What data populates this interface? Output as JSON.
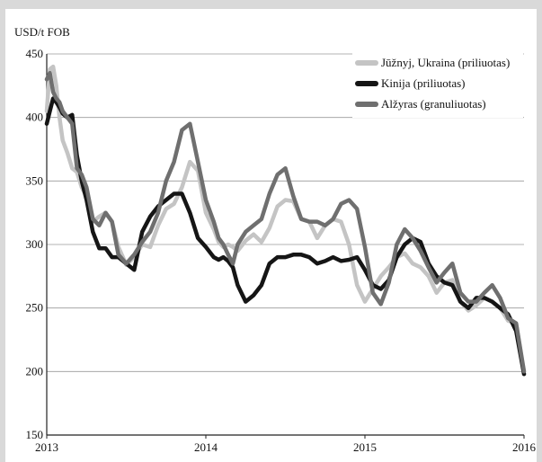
{
  "chart_data": {
    "type": "line",
    "y_unit_label": "USD/t FOB",
    "ylim": [
      150,
      450
    ],
    "yticks": [
      "150",
      "200",
      "250",
      "300",
      "350",
      "400",
      "450"
    ],
    "xlim": [
      2013.0,
      2016.0
    ],
    "xticks": [
      "2013",
      "2014",
      "2015",
      "2016"
    ],
    "grid": "horizontal",
    "legend_position": "top-right",
    "series": [
      {
        "name": "Jūžnyj, Ukraina  (priliuotas)",
        "color": "#c4c4c4",
        "x": [
          2013.0,
          2013.02,
          2013.04,
          2013.06,
          2013.08,
          2013.1,
          2013.13,
          2013.16,
          2013.19,
          2013.22,
          2013.25,
          2013.29,
          2013.33,
          2013.37,
          2013.41,
          2013.45,
          2013.5,
          2013.55,
          2013.6,
          2013.65,
          2013.7,
          2013.75,
          2013.8,
          2013.85,
          2013.9,
          2013.95,
          2014.0,
          2014.05,
          2014.08,
          2014.11,
          2014.14,
          2014.17,
          2014.2,
          2014.25,
          2014.3,
          2014.35,
          2014.4,
          2014.45,
          2014.5,
          2014.55,
          2014.6,
          2014.65,
          2014.7,
          2014.75,
          2014.8,
          2014.85,
          2014.9,
          2014.95,
          2015.0,
          2015.05,
          2015.1,
          2015.15,
          2015.2,
          2015.25,
          2015.3,
          2015.35,
          2015.4,
          2015.45,
          2015.5,
          2015.55,
          2015.6,
          2015.65,
          2015.7,
          2015.75,
          2015.8,
          2015.85,
          2015.9,
          2015.95,
          2016.0
        ],
        "values": [
          405,
          438,
          440,
          425,
          400,
          382,
          372,
          360,
          357,
          345,
          338,
          318,
          322,
          325,
          318,
          298,
          284,
          290,
          300,
          298,
          315,
          328,
          332,
          345,
          365,
          358,
          325,
          312,
          302,
          298,
          300,
          298,
          295,
          303,
          308,
          302,
          313,
          330,
          335,
          334,
          320,
          318,
          305,
          315,
          320,
          318,
          300,
          268,
          255,
          265,
          275,
          282,
          290,
          293,
          285,
          282,
          275,
          262,
          270,
          272,
          255,
          248,
          252,
          258,
          255,
          250,
          240,
          238,
          198
        ]
      },
      {
        "name": "Kinija (priliuotas)",
        "color": "#151515",
        "x": [
          2013.0,
          2013.02,
          2013.04,
          2013.06,
          2013.08,
          2013.1,
          2013.13,
          2013.16,
          2013.19,
          2013.22,
          2013.25,
          2013.29,
          2013.33,
          2013.37,
          2013.41,
          2013.45,
          2013.5,
          2013.55,
          2013.6,
          2013.65,
          2013.7,
          2013.75,
          2013.8,
          2013.85,
          2013.9,
          2013.95,
          2014.0,
          2014.05,
          2014.08,
          2014.11,
          2014.14,
          2014.17,
          2014.2,
          2014.25,
          2014.3,
          2014.35,
          2014.4,
          2014.45,
          2014.5,
          2014.55,
          2014.6,
          2014.65,
          2014.7,
          2014.75,
          2014.8,
          2014.85,
          2014.9,
          2014.95,
          2015.0,
          2015.05,
          2015.1,
          2015.15,
          2015.2,
          2015.25,
          2015.3,
          2015.35,
          2015.4,
          2015.45,
          2015.5,
          2015.55,
          2015.6,
          2015.65,
          2015.7,
          2015.75,
          2015.8,
          2015.85,
          2015.9,
          2015.95,
          2016.0
        ],
        "values": [
          395,
          405,
          415,
          412,
          408,
          403,
          400,
          402,
          370,
          350,
          335,
          310,
          297,
          297,
          290,
          290,
          285,
          280,
          310,
          322,
          330,
          335,
          340,
          340,
          325,
          305,
          298,
          290,
          288,
          290,
          287,
          282,
          268,
          255,
          260,
          268,
          285,
          290,
          290,
          292,
          292,
          290,
          285,
          287,
          290,
          287,
          288,
          290,
          280,
          268,
          265,
          272,
          290,
          300,
          305,
          302,
          285,
          275,
          270,
          268,
          255,
          250,
          258,
          258,
          255,
          250,
          245,
          232,
          198
        ]
      },
      {
        "name": "Alžyras (granuliuotas)",
        "color": "#6f6f6f",
        "x": [
          2013.0,
          2013.02,
          2013.04,
          2013.06,
          2013.08,
          2013.1,
          2013.13,
          2013.16,
          2013.19,
          2013.22,
          2013.25,
          2013.29,
          2013.33,
          2013.37,
          2013.41,
          2013.45,
          2013.5,
          2013.55,
          2013.6,
          2013.65,
          2013.7,
          2013.75,
          2013.8,
          2013.85,
          2013.9,
          2013.95,
          2014.0,
          2014.05,
          2014.08,
          2014.11,
          2014.14,
          2014.17,
          2014.2,
          2014.25,
          2014.3,
          2014.35,
          2014.4,
          2014.45,
          2014.5,
          2014.55,
          2014.6,
          2014.65,
          2014.7,
          2014.75,
          2014.8,
          2014.85,
          2014.9,
          2014.95,
          2015.0,
          2015.05,
          2015.1,
          2015.15,
          2015.2,
          2015.25,
          2015.3,
          2015.35,
          2015.4,
          2015.45,
          2015.5,
          2015.55,
          2015.6,
          2015.65,
          2015.7,
          2015.75,
          2015.8,
          2015.85,
          2015.9,
          2015.95,
          2016.0
        ],
        "values": [
          430,
          435,
          420,
          415,
          412,
          405,
          400,
          395,
          360,
          355,
          345,
          320,
          315,
          325,
          318,
          292,
          285,
          292,
          302,
          310,
          325,
          350,
          365,
          390,
          395,
          365,
          335,
          318,
          305,
          300,
          292,
          285,
          300,
          310,
          315,
          320,
          340,
          355,
          360,
          338,
          320,
          318,
          318,
          315,
          320,
          332,
          335,
          328,
          298,
          262,
          253,
          270,
          300,
          312,
          305,
          295,
          282,
          270,
          278,
          285,
          262,
          255,
          255,
          262,
          268,
          258,
          242,
          238,
          200
        ]
      }
    ]
  }
}
